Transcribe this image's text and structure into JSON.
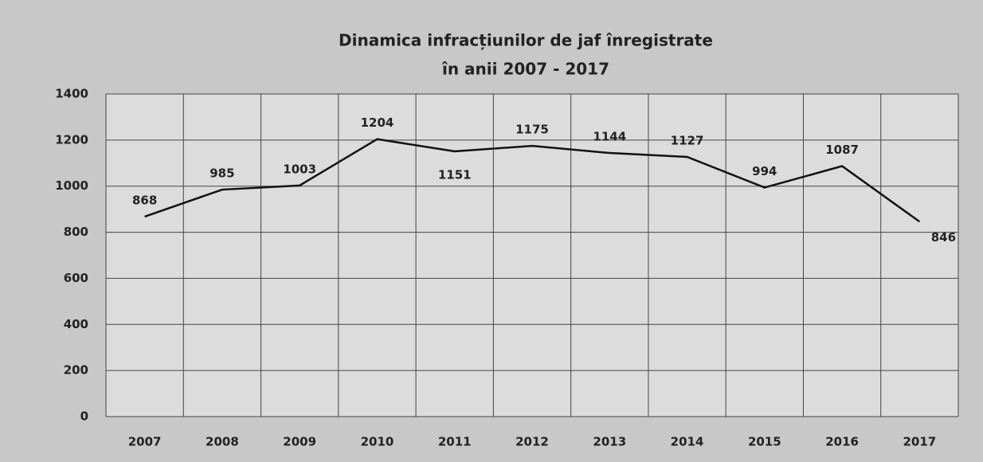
{
  "chart_data": {
    "type": "line",
    "title": "Dinamica infracțiunilor de jaf înregistrate",
    "subtitle": "în anii 2007 - 2017",
    "categories": [
      "2007",
      "2008",
      "2009",
      "2010",
      "2011",
      "2012",
      "2013",
      "2014",
      "2015",
      "2016",
      "2017"
    ],
    "values": [
      868,
      985,
      1003,
      1204,
      1151,
      1175,
      1144,
      1127,
      994,
      1087,
      846
    ],
    "color": "#111111",
    "ylim": [
      0,
      1400
    ],
    "yticks": [
      0,
      200,
      400,
      600,
      800,
      1000,
      1200,
      1400
    ],
    "grid": true
  }
}
